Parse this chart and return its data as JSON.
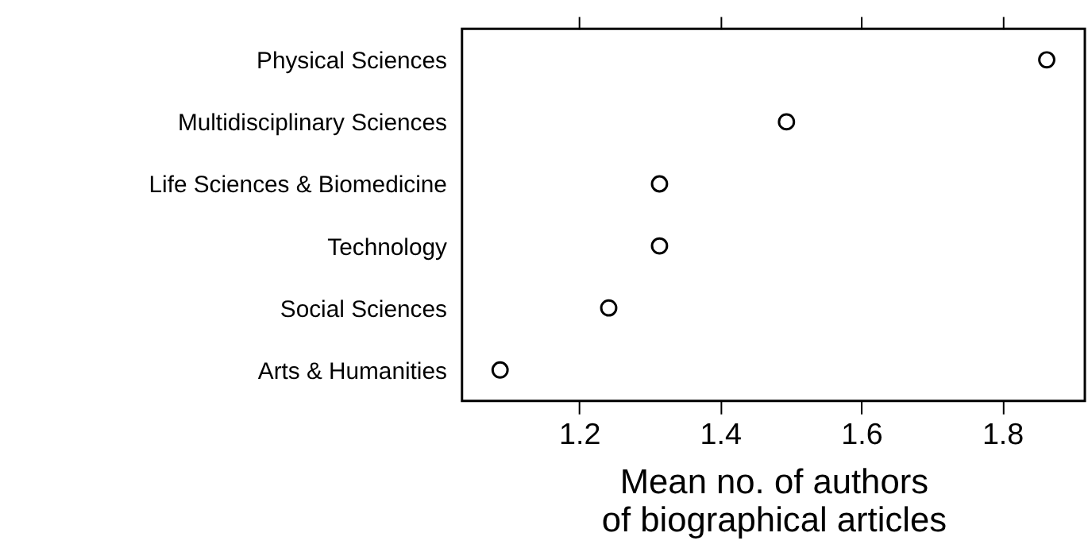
{
  "chart_data": {
    "type": "scatter",
    "categories": [
      "Physical Sciences",
      "Multidisciplinary Sciences",
      "Life Sciences & Biomedicine",
      "Technology",
      "Social Sciences",
      "Arts & Humanities"
    ],
    "orientation": "horizontal",
    "series": [
      {
        "color": "#000000",
        "values": [
          1.863,
          1.494,
          1.314,
          1.314,
          1.242,
          1.088
        ]
      }
    ],
    "xlabel": "Mean no. of authors\nof biographical articles",
    "xlim": [
      1.034,
      1.917
    ],
    "xticks": [
      1.2,
      1.4,
      1.6,
      1.8
    ],
    "marker": "circle",
    "grid": false
  }
}
